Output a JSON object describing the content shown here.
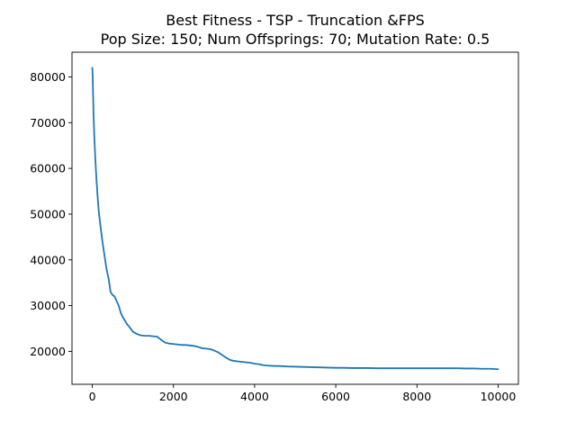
{
  "chart_data": {
    "type": "line",
    "title": "Best Fitness - TSP - Truncation &FPS",
    "subtitle": "Pop Size: 150; Num Offsprings: 70; Mutation Rate: 0.5",
    "xlabel": "",
    "ylabel": "",
    "xlim": [
      -500,
      10500
    ],
    "ylim": [
      12800,
      85400
    ],
    "xticks": [
      0,
      2000,
      4000,
      6000,
      8000,
      10000
    ],
    "yticks": [
      20000,
      30000,
      40000,
      50000,
      60000,
      70000,
      80000
    ],
    "grid": false,
    "legend": "none",
    "series": [
      {
        "color": "#1f77b4",
        "x": [
          0,
          10,
          20,
          30,
          50,
          70,
          100,
          130,
          160,
          200,
          250,
          300,
          350,
          400,
          450,
          500,
          550,
          600,
          650,
          700,
          750,
          800,
          850,
          900,
          1000,
          1100,
          1200,
          1300,
          1400,
          1500,
          1600,
          1700,
          1800,
          1900,
          2000,
          2100,
          2200,
          2300,
          2400,
          2500,
          2600,
          2700,
          2800,
          2900,
          3000,
          3100,
          3200,
          3300,
          3400,
          3500,
          3600,
          3700,
          3800,
          3900,
          4000,
          4100,
          4200,
          4300,
          4400,
          4500,
          4600,
          4700,
          4800,
          5000,
          5200,
          5400,
          5600,
          5800,
          6000,
          6200,
          6400,
          6600,
          6800,
          7000,
          7500,
          8000,
          8500,
          9000,
          9200,
          9400,
          9600,
          9800,
          10000
        ],
        "y": [
          82000,
          80000,
          76000,
          72000,
          67000,
          63000,
          58000,
          54000,
          50500,
          47500,
          44000,
          41000,
          38000,
          36000,
          33000,
          32300,
          32000,
          31000,
          30000,
          28500,
          27500,
          26800,
          26000,
          25500,
          24300,
          23800,
          23500,
          23400,
          23400,
          23300,
          23200,
          22500,
          21900,
          21700,
          21600,
          21500,
          21400,
          21400,
          21300,
          21200,
          21000,
          20700,
          20600,
          20500,
          20200,
          19800,
          19200,
          18600,
          18100,
          17900,
          17800,
          17700,
          17600,
          17500,
          17300,
          17200,
          17000,
          16900,
          16850,
          16800,
          16800,
          16750,
          16700,
          16650,
          16600,
          16550,
          16500,
          16450,
          16400,
          16400,
          16350,
          16350,
          16350,
          16300,
          16300,
          16300,
          16300,
          16300,
          16250,
          16250,
          16200,
          16200,
          16100
        ]
      }
    ]
  }
}
